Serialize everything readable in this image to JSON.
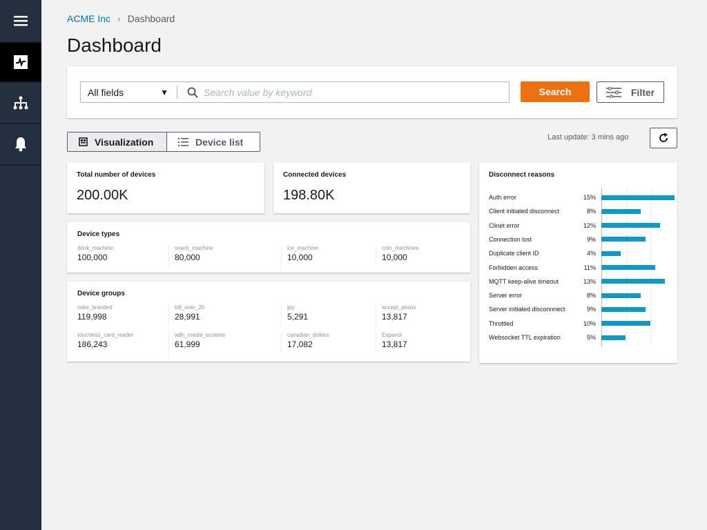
{
  "sidebar": {
    "items": [
      {
        "icon": "menu-icon"
      },
      {
        "icon": "dashboard-icon",
        "active": true
      },
      {
        "icon": "hierarchy-icon"
      },
      {
        "icon": "bell-icon"
      }
    ]
  },
  "breadcrumb": {
    "root": "ACME Inc",
    "current": "Dashboard"
  },
  "page_title": "Dashboard",
  "search": {
    "field_select": "All fields",
    "placeholder": "Search value by keyword",
    "value": "",
    "search_label": "Search",
    "filter_label": "Filter",
    "accent": "#ec7211"
  },
  "view_toggle": {
    "visualization": "Visualization",
    "device_list": "Device list",
    "selected": "Visualization"
  },
  "last_update": "Last update: 3 mins ago",
  "total": {
    "title": "Total number of devices",
    "value": "200.00K"
  },
  "connected": {
    "title": "Connected devices",
    "value": "198.80K"
  },
  "device_types": {
    "title": "Device types",
    "items": [
      {
        "k": "drink_machine",
        "v": "100,000"
      },
      {
        "k": "snack_machine",
        "v": "80,000"
      },
      {
        "k": "ice_machine",
        "v": "10,000"
      },
      {
        "k": "coin_machines",
        "v": "10,000"
      }
    ]
  },
  "device_groups": {
    "title": "Device groups",
    "items": [
      {
        "k": "coke_branded",
        "v": "119,998"
      },
      {
        "k": "bill_over_20",
        "v": "28,991"
      },
      {
        "k": "jpy",
        "v": "5,291"
      },
      {
        "k": "accept_pesos",
        "v": "13,817"
      },
      {
        "k": "touchless_card_reader",
        "v": "186,243"
      },
      {
        "k": "with_media_screens",
        "v": "61,999"
      },
      {
        "k": "canadian_dollars",
        "v": "17,082"
      },
      {
        "k": "Espanol",
        "v": "13,817"
      }
    ]
  },
  "chart_data": {
    "type": "bar",
    "orientation": "horizontal",
    "title": "Disconnect reasons",
    "bar_color": "#0f9ac6",
    "grid": true,
    "categories": [
      "Auth error",
      "Client initiated disconnect",
      "Clinet error",
      "Connection lost",
      "Duplicate client ID",
      "Forbidden access",
      "MQTT keep-alive timeout",
      "Server error",
      "Server initiated disconnnect",
      "Throttled",
      "Websocket TTL expiration"
    ],
    "values": [
      15,
      8,
      12,
      9,
      4,
      11,
      13,
      8,
      9,
      10,
      5
    ],
    "labels": [
      "15%",
      "8%",
      "12%",
      "9%",
      "4%",
      "11%",
      "13%",
      "8%",
      "9%",
      "10%",
      "5%"
    ]
  }
}
